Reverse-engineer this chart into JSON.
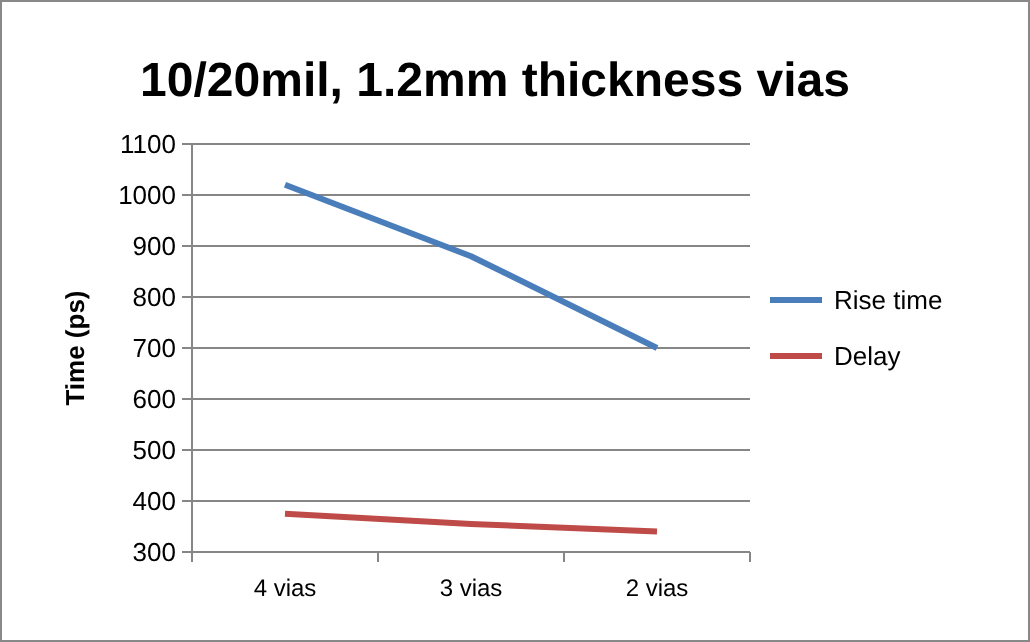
{
  "chart_data": {
    "type": "line",
    "title": "10/20mil, 1.2mm thickness vias",
    "ylabel": "Time (ps)",
    "categories": [
      "4 vias",
      "3 vias",
      "2 vias"
    ],
    "series": [
      {
        "name": "Rise time",
        "color": "#4a7ebb",
        "values": [
          1020,
          880,
          700
        ]
      },
      {
        "name": "Delay",
        "color": "#be4b48",
        "values": [
          375,
          355,
          340
        ]
      }
    ],
    "ylim": [
      300,
      1100
    ],
    "yticks": [
      300,
      400,
      500,
      600,
      700,
      800,
      900,
      1000,
      1100
    ],
    "grid": "y",
    "legend": "right",
    "marker": "none"
  }
}
